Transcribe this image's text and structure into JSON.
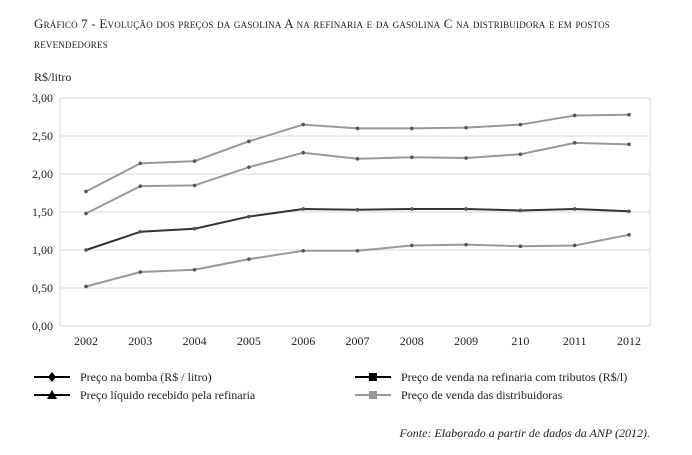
{
  "title": "Gráfico 7 - Evolução dos preços da gasolina A na refinaria e da gasolina C na distribuidora e em postos revendedores",
  "source": "Fonte: Elaborado a partir de dados da ANP (2012).",
  "chart_data": {
    "type": "line",
    "title": "Gráfico 7 - Evolução dos preços da gasolina A na refinaria e da gasolina C na distribuidora e em postos revendedores",
    "ylabel": "R$/litro",
    "xlabel": "",
    "categories": [
      "2002",
      "2003",
      "2004",
      "2005",
      "2006",
      "2007",
      "2008",
      "2009",
      "210",
      "2011",
      "2012"
    ],
    "yticks": [
      "0,00",
      "0,50",
      "1,00",
      "1,50",
      "2,00",
      "2,50",
      "3,00"
    ],
    "ylim": [
      0,
      3
    ],
    "grid": true,
    "legend_position": "bottom",
    "series": [
      {
        "name": "Preço na bomba (R$ / litro)",
        "color": "#999999",
        "marker": "diamond",
        "values": [
          1.77,
          2.14,
          2.17,
          2.43,
          2.65,
          2.6,
          2.6,
          2.61,
          2.65,
          2.77,
          2.78
        ]
      },
      {
        "name": "Preço de venda das distribuidoras",
        "color": "#999999",
        "marker": "square",
        "values": [
          1.48,
          1.84,
          1.85,
          2.09,
          2.28,
          2.2,
          2.22,
          2.21,
          2.26,
          2.41,
          2.39
        ]
      },
      {
        "name": "Preço de venda na refinaria com tributos (R$/l)",
        "color": "#333333",
        "marker": "square",
        "values": [
          1.0,
          1.24,
          1.28,
          1.44,
          1.54,
          1.53,
          1.54,
          1.54,
          1.52,
          1.54,
          1.51
        ]
      },
      {
        "name": "Preço líquido recebido pela refinaria",
        "color": "#999999",
        "marker": "triangle",
        "values": [
          0.52,
          0.71,
          0.74,
          0.88,
          0.99,
          0.99,
          1.06,
          1.07,
          1.05,
          1.06,
          1.2
        ]
      }
    ],
    "legend": [
      {
        "label": "Preço na bomba (R$ / litro)",
        "color": "#000000",
        "marker": "diamond"
      },
      {
        "label": "Preço líquido recebido pela refinaria",
        "color": "#000000",
        "marker": "triangle"
      },
      {
        "label": "Preço de venda na refinaria com tributos (R$/l)",
        "color": "#000000",
        "marker": "square"
      },
      {
        "label": "Preço de venda das distribuidoras",
        "color": "#999999",
        "marker": "square"
      }
    ]
  }
}
